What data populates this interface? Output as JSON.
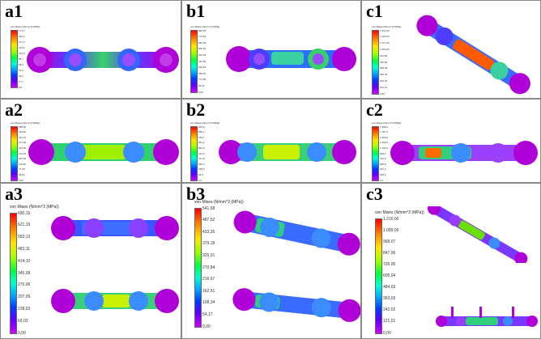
{
  "panels": [
    {
      "id": "a1",
      "legend_title": "von Mises (N/mm^2 (MPa))",
      "ticks": [
        "171,3",
        "154,2",
        "137,0",
        "119,9",
        "102,8",
        "85,7",
        "68,5",
        "51,4",
        "34,3",
        "17,1",
        "0,0"
      ]
    },
    {
      "id": "b1",
      "legend_title": "von Mises (N/mm^2 (MPa))",
      "ticks": [
        "866,30",
        "779,60",
        "692,90",
        "606,20",
        "519,50",
        "432,80",
        "346,20",
        "259,50",
        "172,80",
        "86,63",
        "0,00"
      ]
    },
    {
      "id": "c1",
      "legend_title": "von Mises (N/mm^2 (MPa))",
      "ticks": [
        "1.521,00",
        "1.369,00",
        "1.217,00",
        "1.065,00",
        "912,60",
        "760,50",
        "608,40",
        "456,30",
        "304,20",
        "152,10",
        "0,00"
      ]
    },
    {
      "id": "a2",
      "legend_title": "von Mises (N/mm^2 (MPa))",
      "ticks": [
        "388,40",
        "349,60",
        "310,70",
        "271,90",
        "233,00",
        "194,20",
        "155,40",
        "116,50",
        "77,68",
        "38,84",
        "0,00"
      ]
    },
    {
      "id": "b2",
      "legend_title": "von Mises (N/mm^2 (MPa))",
      "ticks": [
        "944,6",
        "850,1",
        "755,7",
        "661,2",
        "566,8",
        "472,3",
        "377,8",
        "283,4",
        "188,9",
        "94,5",
        "0,0"
      ]
    },
    {
      "id": "c2",
      "legend_title": "von Mises (N/mm^2 (MPa))",
      "ticks": [
        "1.986,0",
        "1.787,0",
        "1.589,0",
        "1.390,0",
        "1.192,0",
        "993,1",
        "794,5",
        "595,8",
        "397,2",
        "198,6",
        "0,0"
      ]
    },
    {
      "id": "a3",
      "legend_title": "von Mises (N/mm^2 (MPa))",
      "ticks": [
        "690,16",
        "621,15",
        "552,13",
        "483,11",
        "414,10",
        "345,08",
        "276,06",
        "207,05",
        "138,03",
        "69,02",
        "0,00"
      ]
    },
    {
      "id": "b3",
      "legend_title": "von Mises (N/mm^2 (MPa))",
      "ticks": [
        "541,68",
        "487,52",
        "433,35",
        "379,18",
        "325,01",
        "270,84",
        "216,67",
        "162,51",
        "108,34",
        "54,17",
        "0,00"
      ]
    },
    {
      "id": "c3",
      "legend_title": "von Mises (N/mm^2 (MPa))",
      "ticks": [
        "1.210,00",
        "1.089,00",
        "968,07",
        "847,06",
        "726,05",
        "605,04",
        "484,03",
        "363,03",
        "242,02",
        "121,01",
        "0,00"
      ]
    }
  ],
  "colors": {
    "plate_end": "#b000d8",
    "plate_mid_a": "#6fe000",
    "plate_mid_b": "#2b6bff",
    "hot": "#ff3a00"
  }
}
